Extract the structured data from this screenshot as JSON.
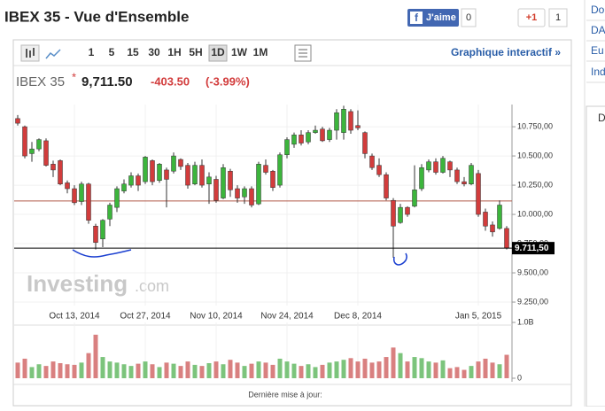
{
  "header": {
    "title": "IBEX 35 - Vue d'Ensemble",
    "like": "J'aime",
    "like_count": "0",
    "gplus": "+1",
    "gplus_count": "1"
  },
  "toolbar": {
    "intervals": [
      "1",
      "5",
      "15",
      "30",
      "1H",
      "5H",
      "1D",
      "1W",
      "1M"
    ],
    "active": "1D",
    "link": "Graphique interactif »"
  },
  "quote": {
    "name": "IBEX 35",
    "star": "*",
    "last": "9,711.50",
    "change": "-403.50",
    "change_pct": "(-3.99%)"
  },
  "watermark": {
    "brand": "Investing",
    "suffix": ".com"
  },
  "footer": "Dernière mise à jour:",
  "sidebar": [
    "Do",
    "DA",
    "Eu",
    "Ind",
    "D"
  ],
  "chart_data": {
    "type": "candlestick",
    "categories": [
      null,
      null,
      null,
      null,
      null,
      null,
      null,
      null,
      "Oct 13, 2014",
      null,
      null,
      null,
      null,
      null,
      null,
      null,
      null,
      null,
      "Oct 27, 2014",
      null,
      null,
      null,
      null,
      null,
      null,
      null,
      null,
      null,
      "Nov 10, 2014",
      null,
      null,
      null,
      null,
      null,
      null,
      null,
      null,
      null,
      "Nov 24, 2014",
      null,
      null,
      null,
      null,
      null,
      null,
      null,
      null,
      null,
      "Dec 8, 2014",
      null,
      null,
      null,
      null,
      null,
      null,
      null,
      null,
      null,
      null,
      null,
      null,
      null,
      null,
      null,
      null,
      "Jan 5, 2015",
      null,
      null,
      null,
      null
    ],
    "open": [
      10820,
      10750,
      10520,
      10560,
      10630,
      10430,
      10460,
      10270,
      10220,
      10110,
      10260,
      9900,
      9790,
      9960,
      10060,
      10200,
      10250,
      10330,
      10280,
      10460,
      10290,
      10380,
      10370,
      10470,
      10420,
      10260,
      10420,
      10260,
      10300,
      10140,
      10370,
      10220,
      10150,
      10220,
      10090,
      10420,
      10370,
      10250,
      10510,
      10600,
      10680,
      10620,
      10700,
      10730,
      10640,
      10720,
      10700,
      10880,
      10760,
      10700,
      10500,
      10420,
      10340,
      10120,
      9930,
      10060,
      10070,
      10220,
      10380,
      10450,
      10360,
      10450,
      10380,
      10280,
      10260,
      10350,
      10020,
      9910,
      9880,
      9880
    ],
    "high": [
      10850,
      10760,
      10620,
      10650,
      10650,
      10460,
      10470,
      10290,
      10250,
      10280,
      10270,
      9920,
      9960,
      10100,
      10240,
      10300,
      10360,
      10350,
      10500,
      10470,
      10440,
      10400,
      10530,
      10480,
      10440,
      10450,
      10470,
      10360,
      10330,
      10430,
      10390,
      10250,
      10240,
      10240,
      10450,
      10470,
      10380,
      10530,
      10660,
      10700,
      10720,
      10720,
      10760,
      10750,
      10740,
      10900,
      10930,
      10900,
      10890,
      10710,
      10520,
      10480,
      10360,
      10140,
      10090,
      10070,
      10420,
      10430,
      10470,
      10480,
      10500,
      10460,
      10400,
      10320,
      10440,
      10380,
      10050,
      9940,
      10120,
      9900
    ],
    "low": [
      10760,
      10480,
      10450,
      10540,
      10410,
      10320,
      10250,
      10180,
      10080,
      10080,
      9920,
      9700,
      9720,
      9900,
      10020,
      10180,
      10230,
      10200,
      10260,
      10250,
      10270,
      10060,
      10350,
      10380,
      10220,
      10250,
      10230,
      10090,
      10100,
      10130,
      10150,
      10100,
      10090,
      10060,
      10080,
      10340,
      10200,
      10230,
      10480,
      10570,
      10590,
      10600,
      10690,
      10620,
      10620,
      10640,
      10640,
      10690,
      10720,
      10480,
      10380,
      10320,
      10120,
      9630,
      9920,
      9980,
      10060,
      10200,
      10360,
      10340,
      10350,
      10320,
      10260,
      10240,
      10250,
      9980,
      9860,
      9810,
      9870,
      9700
    ],
    "close": [
      10780,
      10500,
      10560,
      10640,
      10420,
      10380,
      10260,
      10220,
      10100,
      10260,
      9950,
      9760,
      9950,
      10080,
      10220,
      10260,
      10330,
      10250,
      10490,
      10280,
      10430,
      10300,
      10500,
      10410,
      10250,
      10420,
      10250,
      10320,
      10120,
      10400,
      10210,
      10140,
      10220,
      10080,
      10430,
      10360,
      10230,
      10510,
      10640,
      10680,
      10610,
      10700,
      10720,
      10630,
      10720,
      10870,
      10900,
      10720,
      10740,
      10520,
      10400,
      10340,
      10140,
      9900,
      10060,
      10000,
      10210,
      10400,
      10450,
      10360,
      10480,
      10380,
      10280,
      10260,
      10420,
      10000,
      9900,
      9850,
      10080,
      9711.5
    ],
    "volume": [
      0.28,
      0.35,
      0.2,
      0.25,
      0.22,
      0.3,
      0.27,
      0.25,
      0.24,
      0.28,
      0.45,
      0.78,
      0.38,
      0.3,
      0.28,
      0.25,
      0.22,
      0.26,
      0.3,
      0.25,
      0.2,
      0.28,
      0.26,
      0.22,
      0.3,
      0.24,
      0.22,
      0.27,
      0.3,
      0.25,
      0.33,
      0.28,
      0.22,
      0.26,
      0.3,
      0.28,
      0.24,
      0.35,
      0.3,
      0.26,
      0.22,
      0.25,
      0.2,
      0.24,
      0.28,
      0.3,
      0.33,
      0.36,
      0.3,
      0.35,
      0.28,
      0.3,
      0.38,
      0.55,
      0.45,
      0.3,
      0.38,
      0.36,
      0.3,
      0.28,
      0.32,
      0.18,
      0.2,
      0.15,
      0.22,
      0.3,
      0.35,
      0.28,
      0.25,
      0.42
    ],
    "ylim": [
      9220,
      10940
    ],
    "yticks": [
      {
        "value": 9250,
        "label": "9.250,00"
      },
      {
        "value": 9500,
        "label": "9.500,00"
      },
      {
        "value": 9750,
        "label": "9.750,00"
      },
      {
        "value": 10000,
        "label": "10.000,00"
      },
      {
        "value": 10250,
        "label": "10.250,00"
      },
      {
        "value": 10500,
        "label": "10.500,00"
      },
      {
        "value": 10750,
        "label": "10.750,00"
      }
    ],
    "volume_ylim": [
      0,
      1
    ],
    "volume_yticks": [
      0,
      {
        "value": 1,
        "label": "1.0B"
      }
    ],
    "reference_line": 10115,
    "last_price": {
      "value": 9711.5,
      "label": "9.711,50"
    },
    "up_color": "#3cb53c",
    "down_color": "#d23c3c",
    "up_volume_color": "#7cc47c",
    "down_volume_color": "#d98080",
    "grid": true
  }
}
